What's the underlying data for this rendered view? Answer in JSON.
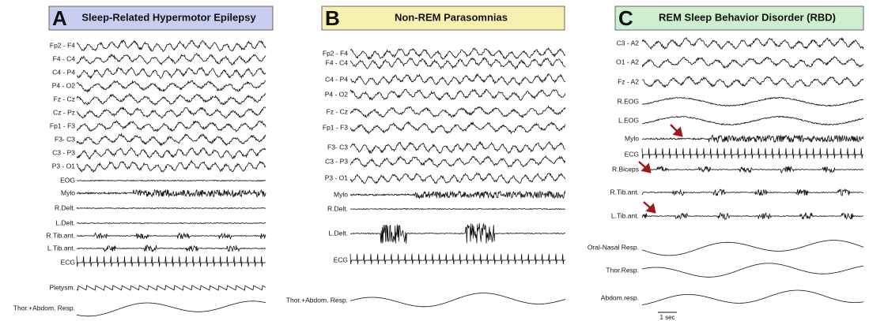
{
  "panels": [
    {
      "letter": "A",
      "title": "Sleep-Related Hypermotor Epilepsy",
      "channels": [
        "Fp2 - F4",
        "F4 - C4",
        "C4 - P4",
        "P4 - O2",
        "Fz - Cz",
        "Cz - Pz",
        "Fp1 - F3",
        "F3- C3",
        "C3 - P3",
        "P3 - O1",
        "EOG",
        "Mylo",
        "R.Delt.",
        "L.Delt.",
        "R.Tib.ant.",
        "L.Tib.ant.",
        "ECG",
        "Pletysm.",
        "Thor.+Abdom. Resp."
      ]
    },
    {
      "letter": "B",
      "title": "Non-REM Parasomnias",
      "channels": [
        "Fp2 - F4",
        "F4 - C4",
        "C4 - P4",
        "P4 - O2",
        "Fz - Cz",
        "Fp1 - F3",
        "F3- C3",
        "C3 - P3",
        "P3 - O1",
        "Mylo",
        "R.Delt.",
        "L.Delt.",
        "ECG",
        "Thor.+Abdom. Resp."
      ]
    },
    {
      "letter": "C",
      "title": "REM Sleep Behavior Disorder (RBD)",
      "channels": [
        "C3 - A2",
        "O1 - A2",
        "Fz - A2",
        "R.EOG",
        "L.EOG",
        "Mylo",
        "ECG",
        "R.Biceps",
        "R.Tib.ant.",
        "L.Tib.ant.",
        "Oral-Nasal Resp.",
        "Thor.Resp.",
        "Abdom.resp."
      ],
      "scale": "1 sec"
    }
  ]
}
